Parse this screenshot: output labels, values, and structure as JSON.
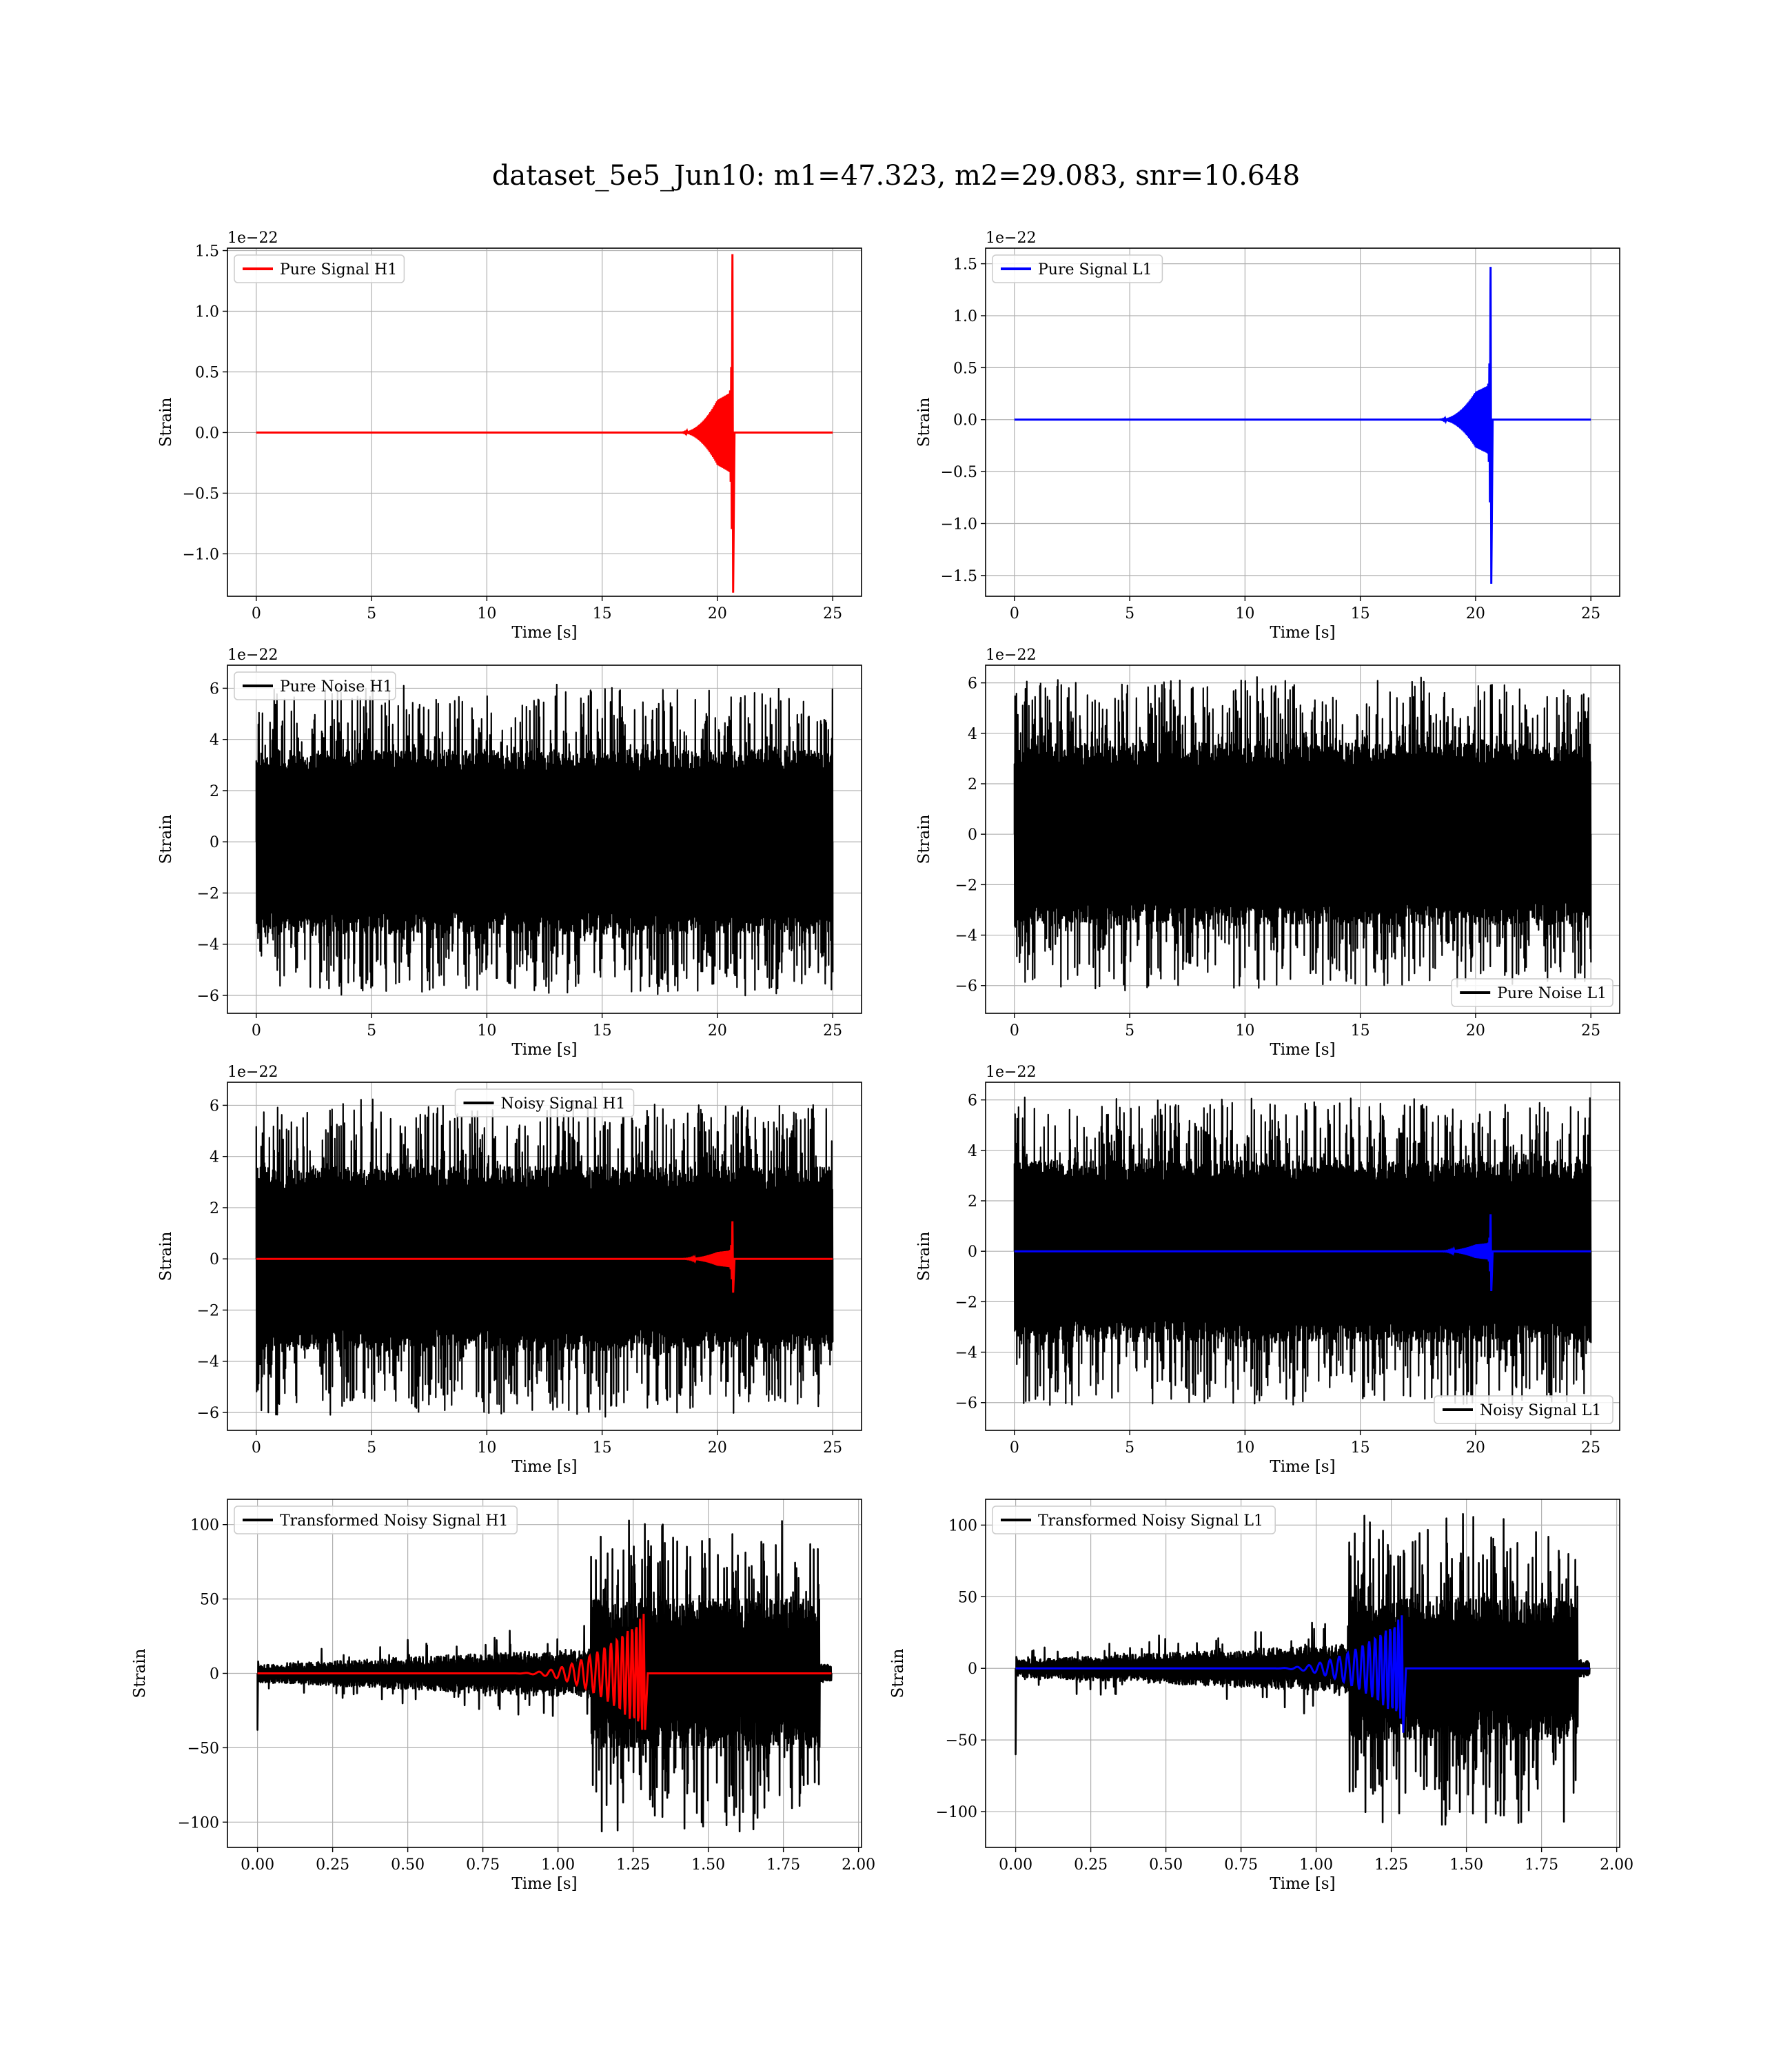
{
  "figure": {
    "title": "dataset_5e5_Jun10: m1=47.323, m2=29.083, snr=10.648"
  },
  "colors": {
    "h1_signal": "#ff0000",
    "l1_signal": "#0000ff",
    "noise": "#000000",
    "grid": "#b0b0b0"
  },
  "chart_data": [
    {
      "id": "pure-signal-h1",
      "type": "line",
      "xlabel": "Time [s]",
      "ylabel": "Strain",
      "y_offset_label": "1e−22",
      "xlim": [
        -1.25,
        26.25
      ],
      "ylim": [
        -1.35,
        1.52
      ],
      "xticks": [
        0,
        5,
        10,
        15,
        20,
        25
      ],
      "xtick_labels": [
        "0",
        "5",
        "10",
        "15",
        "20",
        "25"
      ],
      "yticks": [
        -1.0,
        -0.5,
        0.0,
        0.5,
        1.0,
        1.5
      ],
      "ytick_labels": [
        "−1.0",
        "−0.5",
        "0.0",
        "0.5",
        "1.0",
        "1.5"
      ],
      "legend": {
        "position": "upper left",
        "entries": [
          {
            "label": "Pure Signal H1",
            "color": "#ff0000"
          }
        ]
      },
      "series": [
        {
          "name": "Pure Signal H1",
          "kind": "chirp",
          "color": "#ff0000",
          "t_start": 0,
          "t_end": 25,
          "merger_time": 20.65,
          "max": 1.47,
          "min": -1.32
        }
      ]
    },
    {
      "id": "pure-signal-l1",
      "type": "line",
      "xlabel": "Time [s]",
      "ylabel": "Strain",
      "y_offset_label": "1e−22",
      "xlim": [
        -1.25,
        26.25
      ],
      "ylim": [
        -1.7,
        1.65
      ],
      "xticks": [
        0,
        5,
        10,
        15,
        20,
        25
      ],
      "xtick_labels": [
        "0",
        "5",
        "10",
        "15",
        "20",
        "25"
      ],
      "yticks": [
        -1.5,
        -1.0,
        -0.5,
        0.0,
        0.5,
        1.0,
        1.5
      ],
      "ytick_labels": [
        "−1.5",
        "−1.0",
        "−0.5",
        "0.0",
        "0.5",
        "1.0",
        "1.5"
      ],
      "legend": {
        "position": "upper left",
        "entries": [
          {
            "label": "Pure Signal L1",
            "color": "#0000ff"
          }
        ]
      },
      "series": [
        {
          "name": "Pure Signal L1",
          "kind": "chirp",
          "color": "#0000ff",
          "t_start": 0,
          "t_end": 25,
          "merger_time": 20.65,
          "max": 1.47,
          "min": -1.58
        }
      ]
    },
    {
      "id": "pure-noise-h1",
      "type": "line",
      "xlabel": "Time [s]",
      "ylabel": "Strain",
      "y_offset_label": "1e−22",
      "xlim": [
        -1.25,
        26.25
      ],
      "ylim": [
        -6.7,
        6.9
      ],
      "xticks": [
        0,
        5,
        10,
        15,
        20,
        25
      ],
      "xtick_labels": [
        "0",
        "5",
        "10",
        "15",
        "20",
        "25"
      ],
      "yticks": [
        -6,
        -4,
        -2,
        0,
        2,
        4,
        6
      ],
      "ytick_labels": [
        "−6",
        "−4",
        "−2",
        "0",
        "2",
        "4",
        "6"
      ],
      "legend": {
        "position": "upper left",
        "entries": [
          {
            "label": "Pure Noise H1",
            "color": "#000000"
          }
        ]
      },
      "series": [
        {
          "name": "Pure Noise H1",
          "kind": "noise",
          "color": "#000000",
          "t_start": 0,
          "t_end": 25,
          "amp": 6.0,
          "seed": 11
        }
      ]
    },
    {
      "id": "pure-noise-l1",
      "type": "line",
      "xlabel": "Time [s]",
      "ylabel": "Strain",
      "y_offset_label": "1e−22",
      "xlim": [
        -1.25,
        26.25
      ],
      "ylim": [
        -7.1,
        6.7
      ],
      "xticks": [
        0,
        5,
        10,
        15,
        20,
        25
      ],
      "xtick_labels": [
        "0",
        "5",
        "10",
        "15",
        "20",
        "25"
      ],
      "yticks": [
        -6,
        -4,
        -2,
        0,
        2,
        4,
        6
      ],
      "ytick_labels": [
        "−6",
        "−4",
        "−2",
        "0",
        "2",
        "4",
        "6"
      ],
      "legend": {
        "position": "lower right",
        "entries": [
          {
            "label": "Pure Noise L1",
            "color": "#000000"
          }
        ]
      },
      "series": [
        {
          "name": "Pure Noise L1",
          "kind": "noise",
          "color": "#000000",
          "t_start": 0,
          "t_end": 25,
          "amp": 6.1,
          "seed": 23
        }
      ]
    },
    {
      "id": "noisy-signal-h1",
      "type": "line",
      "xlabel": "Time [s]",
      "ylabel": "Strain",
      "y_offset_label": "1e−22",
      "xlim": [
        -1.25,
        26.25
      ],
      "ylim": [
        -6.7,
        6.9
      ],
      "xticks": [
        0,
        5,
        10,
        15,
        20,
        25
      ],
      "xtick_labels": [
        "0",
        "5",
        "10",
        "15",
        "20",
        "25"
      ],
      "yticks": [
        -6,
        -4,
        -2,
        0,
        2,
        4,
        6
      ],
      "ytick_labels": [
        "−6",
        "−4",
        "−2",
        "0",
        "2",
        "4",
        "6"
      ],
      "legend": {
        "position": "upper center",
        "entries": [
          {
            "label": "Noisy Signal H1",
            "color": "#000000"
          }
        ]
      },
      "series": [
        {
          "name": "Noisy Signal H1",
          "kind": "noise",
          "color": "#000000",
          "t_start": 0,
          "t_end": 25,
          "amp": 6.1,
          "seed": 37
        },
        {
          "kind": "chirp",
          "color": "#ff0000",
          "t_start": 0,
          "t_end": 25,
          "merger_time": 20.65,
          "max": 1.47,
          "min": -1.32
        }
      ]
    },
    {
      "id": "noisy-signal-l1",
      "type": "line",
      "xlabel": "Time [s]",
      "ylabel": "Strain",
      "y_offset_label": "1e−22",
      "xlim": [
        -1.25,
        26.25
      ],
      "ylim": [
        -7.1,
        6.7
      ],
      "xticks": [
        0,
        5,
        10,
        15,
        20,
        25
      ],
      "xtick_labels": [
        "0",
        "5",
        "10",
        "15",
        "20",
        "25"
      ],
      "yticks": [
        -6,
        -4,
        -2,
        0,
        2,
        4,
        6
      ],
      "ytick_labels": [
        "−6",
        "−4",
        "−2",
        "0",
        "2",
        "4",
        "6"
      ],
      "legend": {
        "position": "lower right",
        "entries": [
          {
            "label": "Noisy Signal L1",
            "color": "#000000"
          }
        ]
      },
      "series": [
        {
          "name": "Noisy Signal L1",
          "kind": "noise",
          "color": "#000000",
          "t_start": 0,
          "t_end": 25,
          "amp": 6.1,
          "seed": 41
        },
        {
          "kind": "chirp",
          "color": "#0000ff",
          "t_start": 0,
          "t_end": 25,
          "merger_time": 20.65,
          "max": 1.47,
          "min": -1.58
        }
      ]
    },
    {
      "id": "transformed-h1",
      "type": "line",
      "xlabel": "Time [s]",
      "ylabel": "Strain",
      "y_offset_label": "",
      "xlim": [
        -0.1,
        2.01
      ],
      "ylim": [
        -117,
        117
      ],
      "xticks": [
        0.0,
        0.25,
        0.5,
        0.75,
        1.0,
        1.25,
        1.5,
        1.75,
        2.0
      ],
      "xtick_labels": [
        "0.00",
        "0.25",
        "0.50",
        "0.75",
        "1.00",
        "1.25",
        "1.50",
        "1.75",
        "2.00"
      ],
      "yticks": [
        -100,
        -50,
        0,
        50,
        100
      ],
      "ytick_labels": [
        "−100",
        "−50",
        "0",
        "50",
        "100"
      ],
      "legend": {
        "position": "upper left",
        "entries": [
          {
            "label": "Transformed Noisy Signal H1",
            "color": "#000000"
          }
        ]
      },
      "series": [
        {
          "name": "Transformed Noisy Signal H1",
          "kind": "tnoise",
          "color": "#000000",
          "t_start": 0,
          "t_end": 1.91,
          "step_time": 1.11,
          "end_time": 1.87,
          "spike": -38,
          "max": 104,
          "min": -109,
          "seed": 53
        },
        {
          "kind": "tchirp",
          "color": "#ff0000",
          "t_start": 0,
          "t_end": 1.91,
          "merger_time": 1.285,
          "max": 40,
          "min": -38
        }
      ]
    },
    {
      "id": "transformed-l1",
      "type": "line",
      "xlabel": "Time [s]",
      "ylabel": "Strain",
      "y_offset_label": "",
      "xlim": [
        -0.1,
        2.01
      ],
      "ylim": [
        -125,
        118
      ],
      "xticks": [
        0.0,
        0.25,
        0.5,
        0.75,
        1.0,
        1.25,
        1.5,
        1.75,
        2.0
      ],
      "xtick_labels": [
        "0.00",
        "0.25",
        "0.50",
        "0.75",
        "1.00",
        "1.25",
        "1.50",
        "1.75",
        "2.00"
      ],
      "yticks": [
        -100,
        -50,
        0,
        50,
        100
      ],
      "ytick_labels": [
        "−100",
        "−50",
        "0",
        "50",
        "100"
      ],
      "legend": {
        "position": "upper left",
        "entries": [
          {
            "label": "Transformed Noisy Signal L1",
            "color": "#000000"
          }
        ]
      },
      "series": [
        {
          "name": "Transformed Noisy Signal L1",
          "kind": "tnoise",
          "color": "#000000",
          "t_start": 0,
          "t_end": 1.91,
          "step_time": 1.11,
          "end_time": 1.87,
          "spike": -60,
          "max": 110,
          "min": -113,
          "seed": 67
        },
        {
          "kind": "tchirp",
          "color": "#0000ff",
          "t_start": 0,
          "t_end": 1.91,
          "merger_time": 1.285,
          "max": 37,
          "min": -45
        }
      ]
    }
  ]
}
